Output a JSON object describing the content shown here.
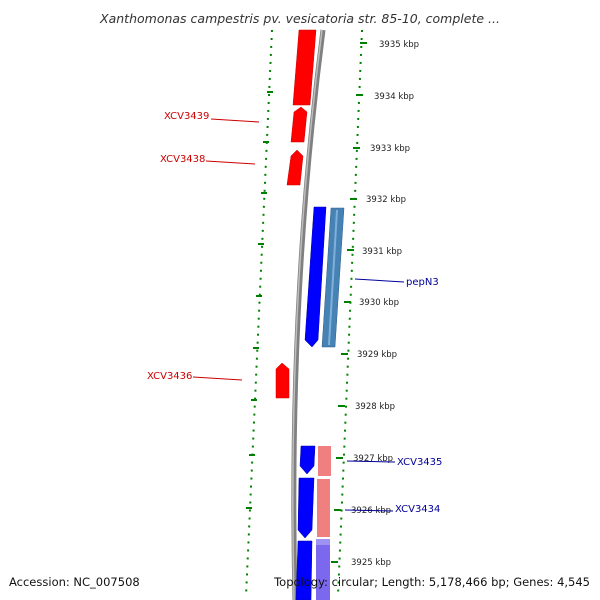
{
  "title": "Xanthomonas campestris pv. vesicatoria str. 85-10, complete ...",
  "footer": {
    "accession": "Accession: NC_007508",
    "summary": "Topology: circular; Length: 5,178,466 bp; Genes: 4,545"
  },
  "colors": {
    "forward_gene": "#ff0000",
    "forward_gene_light": "#f08080",
    "reverse_gene": "#0000ff",
    "reverse_gene_cds": "#4682b4",
    "backbone": "#808080",
    "tick": "#008000",
    "forward_label": "#cc0000",
    "reverse_label": "#000099"
  },
  "ticks": [
    "3935 kbp",
    "3934 kbp",
    "3933 kbp",
    "3932 kbp",
    "3931 kbp",
    "3930 kbp",
    "3929 kbp",
    "3928 kbp",
    "3927 kbp",
    "3926 kbp",
    "3925 kbp"
  ],
  "labels": {
    "xcv3439": "XCV3439",
    "xcv3438": "XCV3438",
    "xcv3436": "XCV3436",
    "pepn3": "pepN3",
    "xcv3435": "XCV3435",
    "xcv3434": "XCV3434"
  }
}
